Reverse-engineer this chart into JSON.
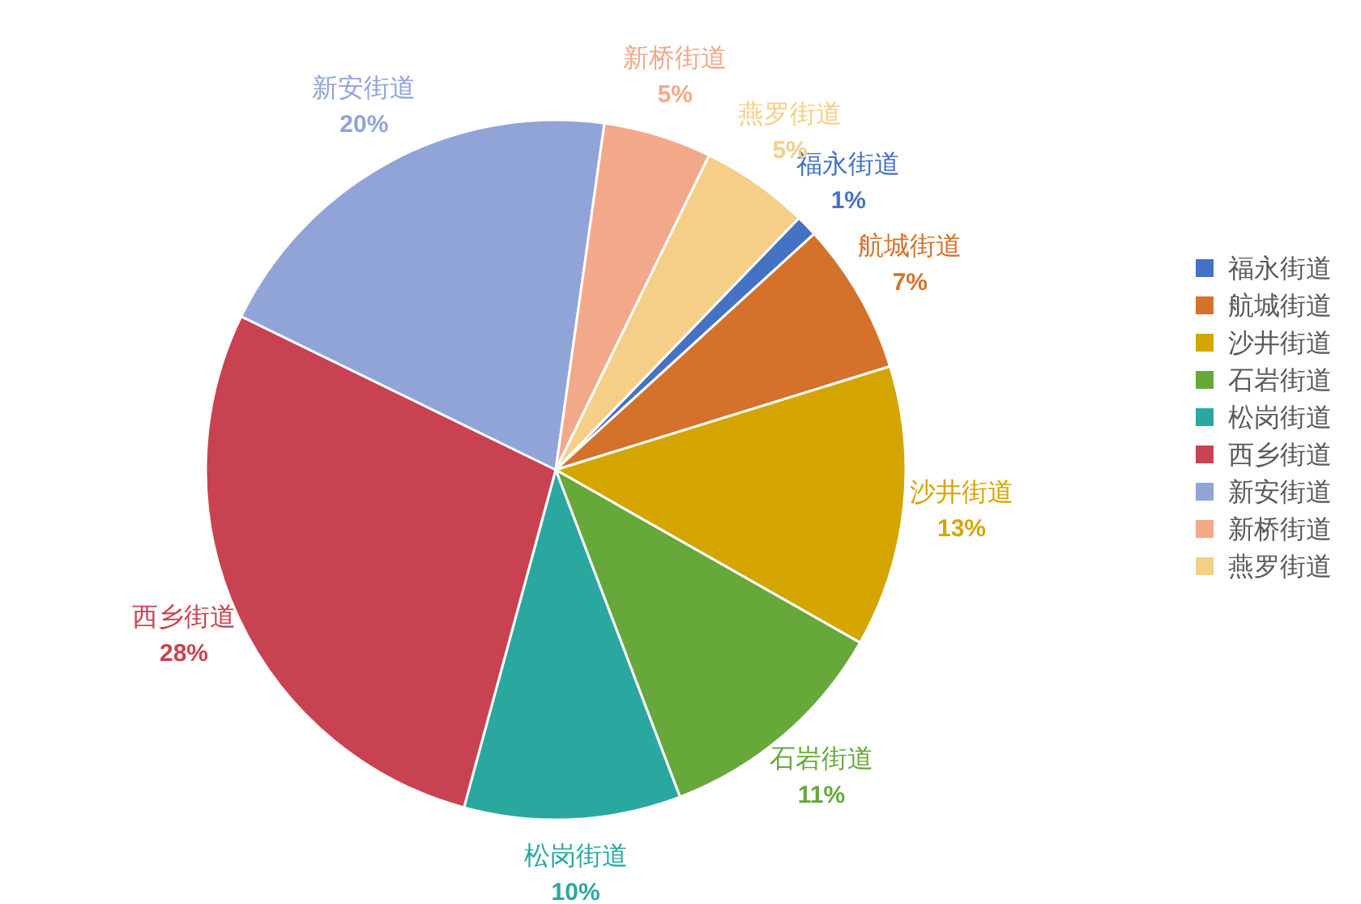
{
  "chart_data": {
    "type": "pie",
    "categories": [
      "福永街道",
      "航城街道",
      "沙井街道",
      "石岩街道",
      "松岗街道",
      "西乡街道",
      "新安街道",
      "新桥街道",
      "燕罗街道"
    ],
    "values": [
      1,
      7,
      13,
      11,
      10,
      28,
      20,
      5,
      5
    ],
    "colors": [
      "#4472c4",
      "#d4722b",
      "#d4a500",
      "#67a83b",
      "#2aa89f",
      "#c94251",
      "#91a4d8",
      "#f2a98a",
      "#f5cf87"
    ],
    "value_labels": [
      "1%",
      "7%",
      "13%",
      "11%",
      "10%",
      "28%",
      "20%",
      "5%",
      "5%"
    ],
    "legend": "right"
  }
}
